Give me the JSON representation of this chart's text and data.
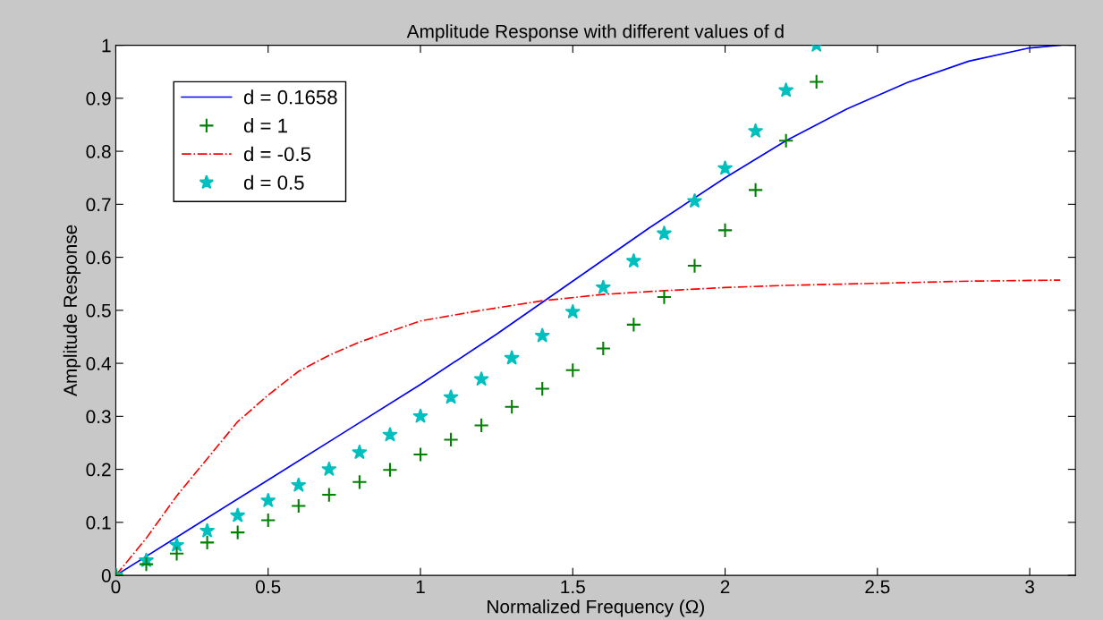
{
  "chart_data": {
    "type": "line",
    "title": "Amplitude Response with different values of d",
    "xlabel": "Normalized Frequency (Ω)",
    "ylabel": "Amplitude Response",
    "xlim": [
      0,
      3.15
    ],
    "ylim": [
      0,
      1
    ],
    "xticks": [
      0,
      0.5,
      1,
      1.5,
      2,
      2.5,
      3
    ],
    "yticks": [
      0,
      0.1,
      0.2,
      0.3,
      0.4,
      0.5,
      0.6,
      0.7,
      0.8,
      0.9,
      1
    ],
    "grid": false,
    "legend": "top left",
    "series": [
      {
        "name": "d = 0.1658",
        "color": "#0000ff",
        "line_style": "solid",
        "marker": "none",
        "x": [
          0,
          0.25,
          0.5,
          0.75,
          1.0,
          1.25,
          1.5,
          1.75,
          2.0,
          2.2,
          2.4,
          2.6,
          2.8,
          3.0,
          3.1
        ],
        "values": [
          0,
          0.09,
          0.18,
          0.27,
          0.36,
          0.455,
          0.555,
          0.655,
          0.75,
          0.82,
          0.88,
          0.93,
          0.97,
          0.995,
          1.0
        ]
      },
      {
        "name": "d = 1",
        "color": "#008000",
        "type": "scatter",
        "marker": "cross",
        "x": [
          0,
          0.1,
          0.2,
          0.3,
          0.4,
          0.5,
          0.6,
          0.7,
          0.8,
          0.9,
          1.0,
          1.1,
          1.2,
          1.3,
          1.4,
          1.5,
          1.6,
          1.7,
          1.8,
          1.9,
          2.0,
          2.1,
          2.2,
          2.3
        ],
        "values": [
          0,
          0.021,
          0.041,
          0.062,
          0.081,
          0.104,
          0.131,
          0.152,
          0.176,
          0.199,
          0.228,
          0.256,
          0.283,
          0.318,
          0.352,
          0.387,
          0.428,
          0.473,
          0.525,
          0.584,
          0.651,
          0.727,
          0.82,
          0.931
        ]
      },
      {
        "name": "d = -0.5",
        "color": "#ff0000",
        "line_style": "dashdot",
        "marker": "none",
        "x": [
          0,
          0.1,
          0.2,
          0.3,
          0.4,
          0.5,
          0.6,
          0.7,
          0.8,
          0.9,
          1.0,
          1.2,
          1.4,
          1.6,
          1.8,
          2.0,
          2.2,
          2.5,
          2.8,
          3.1
        ],
        "values": [
          0,
          0.07,
          0.15,
          0.22,
          0.29,
          0.34,
          0.385,
          0.415,
          0.44,
          0.46,
          0.48,
          0.5,
          0.518,
          0.53,
          0.537,
          0.543,
          0.547,
          0.551,
          0.555,
          0.557
        ]
      },
      {
        "name": "d = 0.5",
        "color": "#00bfbf",
        "type": "scatter",
        "marker": "star",
        "x": [
          0,
          0.1,
          0.2,
          0.3,
          0.4,
          0.5,
          0.6,
          0.7,
          0.8,
          0.9,
          1.0,
          1.1,
          1.2,
          1.3,
          1.4,
          1.5,
          1.6,
          1.7,
          1.8,
          1.9,
          2.0,
          2.1,
          2.2,
          2.3
        ],
        "values": [
          0,
          0.028,
          0.057,
          0.084,
          0.113,
          0.141,
          0.17,
          0.2,
          0.232,
          0.265,
          0.3,
          0.336,
          0.37,
          0.41,
          0.452,
          0.497,
          0.543,
          0.593,
          0.645,
          0.706,
          0.768,
          0.838,
          0.915,
          1.0
        ]
      }
    ]
  }
}
